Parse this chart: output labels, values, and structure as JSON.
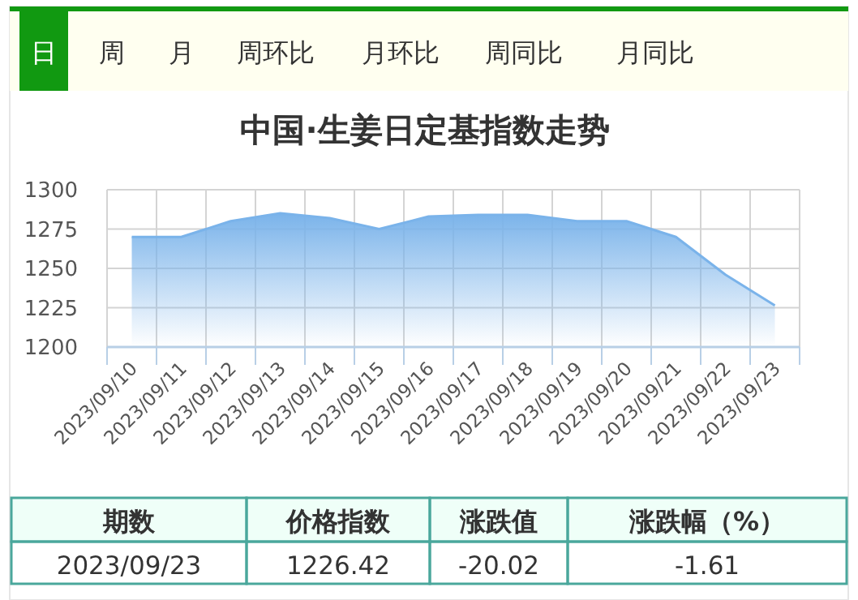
{
  "chart_data": {
    "type": "area",
    "title": "中国·生姜日定基指数走势",
    "categories": [
      "2023/09/10",
      "2023/09/11",
      "2023/09/12",
      "2023/09/13",
      "2023/09/14",
      "2023/09/15",
      "2023/09/16",
      "2023/09/17",
      "2023/09/18",
      "2023/09/19",
      "2023/09/20",
      "2023/09/21",
      "2023/09/22",
      "2023/09/23"
    ],
    "series": [
      {
        "color": "#7ab3ea",
        "values": [
          1270,
          1270,
          1280,
          1285,
          1282,
          1275,
          1283,
          1284,
          1284,
          1280,
          1280,
          1270,
          1246,
          1226.42
        ]
      }
    ],
    "ylim": [
      1200,
      1300
    ],
    "yticks": [
      1200,
      1225,
      1250,
      1275,
      1300
    ],
    "grid": true,
    "annotations": [
      "日",
      "周",
      "月",
      "周环比",
      "月环比",
      "周同比",
      "月同比",
      "期数",
      "价格指数",
      "涨跌值",
      "涨跌幅（%）",
      "2023/09/23",
      "1226.42",
      "-20.02",
      "-1.61"
    ]
  }
}
